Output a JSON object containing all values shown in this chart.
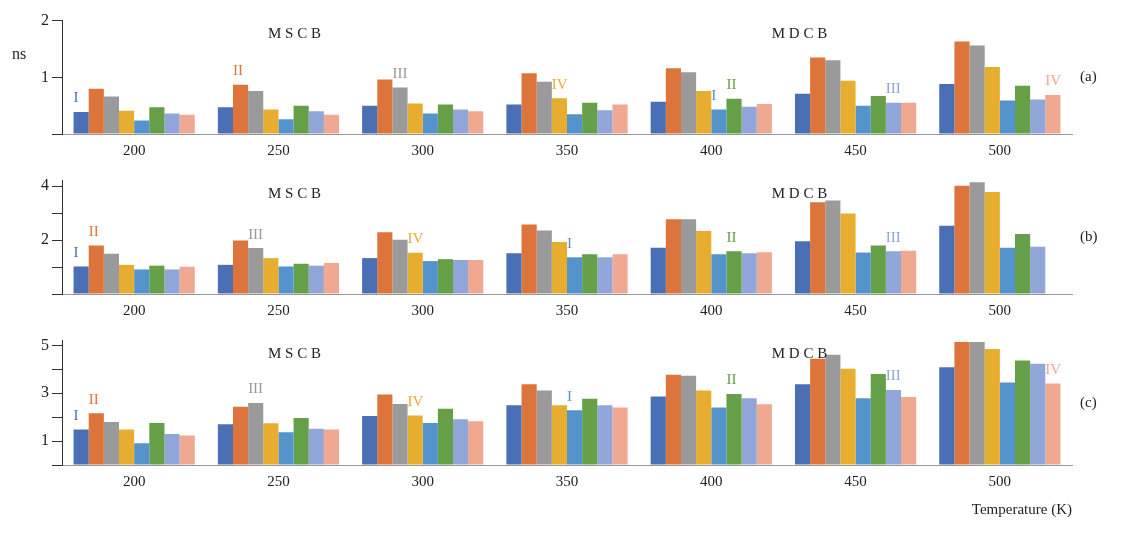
{
  "chart_data": [
    {
      "type": "bar",
      "title": "(a)",
      "ylabel": "ns",
      "annotations": [
        "M S C B",
        "M D C B"
      ],
      "grid": false,
      "ylim": [
        0,
        2
      ],
      "yticks": [
        {
          "value": 0,
          "label": null
        },
        1,
        2
      ],
      "categories": [
        "200",
        "250",
        "300",
        "350",
        "400",
        "450",
        "500"
      ],
      "series": [
        {
          "color": "#4a6fb5",
          "values": [
            0.39,
            0.47,
            0.5,
            0.52,
            0.57,
            0.71,
            0.88
          ],
          "value_labels": [
            "I",
            null,
            null,
            null,
            null,
            null,
            null
          ]
        },
        {
          "color": "#dc743c",
          "values": [
            0.8,
            0.87,
            0.96,
            1.07,
            1.16,
            1.35,
            1.63
          ],
          "value_labels": [
            null,
            "II",
            null,
            null,
            null,
            null,
            null
          ]
        },
        {
          "color": "#9a9a9a",
          "values": [
            0.66,
            0.76,
            0.82,
            0.92,
            1.09,
            1.3,
            1.56
          ],
          "value_labels": [
            null,
            null,
            "III",
            null,
            null,
            null,
            null
          ]
        },
        {
          "color": "#e6ad2e",
          "values": [
            0.41,
            0.43,
            0.54,
            0.63,
            0.76,
            0.94,
            1.18
          ],
          "value_labels": [
            null,
            null,
            null,
            "IV",
            null,
            null,
            null
          ]
        },
        {
          "color": "#5593cc",
          "values": [
            0.24,
            0.26,
            0.36,
            0.35,
            0.43,
            0.5,
            0.59
          ],
          "value_labels": [
            null,
            null,
            null,
            null,
            "I",
            null,
            null
          ]
        },
        {
          "color": "#65a048",
          "values": [
            0.47,
            0.5,
            0.52,
            0.55,
            0.62,
            0.67,
            0.85
          ],
          "value_labels": [
            null,
            null,
            null,
            null,
            "II",
            null,
            null
          ]
        },
        {
          "color": "#91a6d8",
          "values": [
            0.36,
            0.4,
            0.43,
            0.42,
            0.48,
            0.55,
            0.61
          ],
          "value_labels": [
            null,
            null,
            null,
            null,
            null,
            "III",
            null
          ]
        },
        {
          "color": "#f0a890",
          "values": [
            0.34,
            0.34,
            0.4,
            0.52,
            0.53,
            0.55,
            0.69
          ],
          "value_labels": [
            null,
            null,
            null,
            null,
            null,
            null,
            "IV"
          ]
        }
      ]
    },
    {
      "type": "bar",
      "title": "(b)",
      "annotations": [
        "M S C B",
        "M D C B"
      ],
      "grid": false,
      "ylim": [
        0,
        4.2
      ],
      "yticks": [
        {
          "value": 0,
          "label": null
        },
        {
          "value": 1,
          "label": null
        },
        2,
        {
          "value": 3,
          "label": null
        },
        4
      ],
      "categories": [
        "200",
        "250",
        "300",
        "350",
        "400",
        "450",
        "500"
      ],
      "series": [
        {
          "color": "#4a6fb5",
          "values": [
            1.02,
            1.08,
            1.33,
            1.51,
            1.71,
            1.95,
            2.53
          ],
          "value_labels": [
            "I",
            null,
            null,
            null,
            null,
            null,
            null
          ]
        },
        {
          "color": "#dc743c",
          "values": [
            1.8,
            1.98,
            2.29,
            2.57,
            2.77,
            3.4,
            4.01
          ],
          "value_labels": [
            "II",
            null,
            null,
            null,
            null,
            null,
            null
          ]
        },
        {
          "color": "#9a9a9a",
          "values": [
            1.49,
            1.7,
            2.01,
            2.35,
            2.77,
            3.46,
            4.14
          ],
          "value_labels": [
            null,
            "III",
            null,
            null,
            null,
            null,
            null
          ]
        },
        {
          "color": "#e6ad2e",
          "values": [
            1.08,
            1.33,
            1.53,
            1.93,
            2.33,
            2.98,
            3.78
          ],
          "value_labels": [
            null,
            null,
            "IV",
            null,
            null,
            null,
            null
          ]
        },
        {
          "color": "#5593cc",
          "values": [
            0.91,
            1.02,
            1.22,
            1.36,
            1.47,
            1.54,
            1.71
          ],
          "value_labels": [
            null,
            null,
            null,
            "I",
            null,
            null,
            null
          ]
        },
        {
          "color": "#65a048",
          "values": [
            1.05,
            1.12,
            1.29,
            1.47,
            1.58,
            1.8,
            2.22
          ],
          "value_labels": [
            null,
            null,
            null,
            null,
            "II",
            null,
            null
          ]
        },
        {
          "color": "#91a6d8",
          "values": [
            0.91,
            1.05,
            1.26,
            1.36,
            1.51,
            1.58,
            1.75
          ],
          "value_labels": [
            null,
            null,
            null,
            null,
            null,
            "III",
            null
          ]
        },
        {
          "color": "#f0a890",
          "values": [
            1.01,
            1.15,
            1.26,
            1.47,
            1.55,
            1.6,
            null
          ]
        }
      ]
    },
    {
      "type": "bar",
      "title": "(c)",
      "xlabel": "Temperature (K)",
      "annotations": [
        "M S C B",
        "M D C B"
      ],
      "grid": false,
      "ylim": [
        0,
        5.2
      ],
      "yticks": [
        {
          "value": 0,
          "label": null
        },
        1,
        {
          "value": 2,
          "label": null
        },
        3,
        {
          "value": 4,
          "label": null
        },
        5
      ],
      "categories": [
        "200",
        "250",
        "300",
        "350",
        "400",
        "450",
        "500"
      ],
      "series": [
        {
          "color": "#4a6fb5",
          "values": [
            1.48,
            1.7,
            2.05,
            2.5,
            2.86,
            3.38,
            4.09
          ],
          "value_labels": [
            "I",
            null,
            null,
            null,
            null,
            null,
            null
          ]
        },
        {
          "color": "#dc743c",
          "values": [
            2.16,
            2.44,
            2.95,
            3.38,
            3.77,
            4.44,
            5.14
          ],
          "value_labels": [
            "II",
            null,
            null,
            null,
            null,
            null,
            null
          ]
        },
        {
          "color": "#9a9a9a",
          "values": [
            1.8,
            2.59,
            2.55,
            3.11,
            3.73,
            4.61,
            5.14
          ],
          "value_labels": [
            null,
            "III",
            null,
            null,
            null,
            null,
            null
          ]
        },
        {
          "color": "#e6ad2e",
          "values": [
            1.48,
            1.74,
            2.07,
            2.5,
            3.11,
            4.02,
            4.85
          ],
          "value_labels": [
            null,
            null,
            "IV",
            null,
            null,
            null,
            null
          ]
        },
        {
          "color": "#5593cc",
          "values": [
            0.91,
            1.37,
            1.76,
            2.29,
            2.4,
            2.79,
            3.45
          ],
          "value_labels": [
            null,
            null,
            null,
            "I",
            null,
            null,
            null
          ]
        },
        {
          "color": "#65a048",
          "values": [
            1.76,
            1.96,
            2.35,
            2.77,
            2.97,
            3.8,
            4.37
          ],
          "value_labels": [
            null,
            null,
            null,
            null,
            "II",
            null,
            null
          ]
        },
        {
          "color": "#91a6d8",
          "values": [
            1.3,
            1.52,
            1.91,
            2.5,
            2.79,
            3.14,
            4.23
          ],
          "value_labels": [
            null,
            null,
            null,
            null,
            null,
            "III",
            null
          ]
        },
        {
          "color": "#f0a890",
          "values": [
            1.23,
            1.48,
            1.83,
            2.4,
            2.54,
            2.84,
            3.41
          ],
          "value_labels": [
            null,
            null,
            null,
            null,
            null,
            null,
            "IV"
          ]
        }
      ]
    }
  ]
}
